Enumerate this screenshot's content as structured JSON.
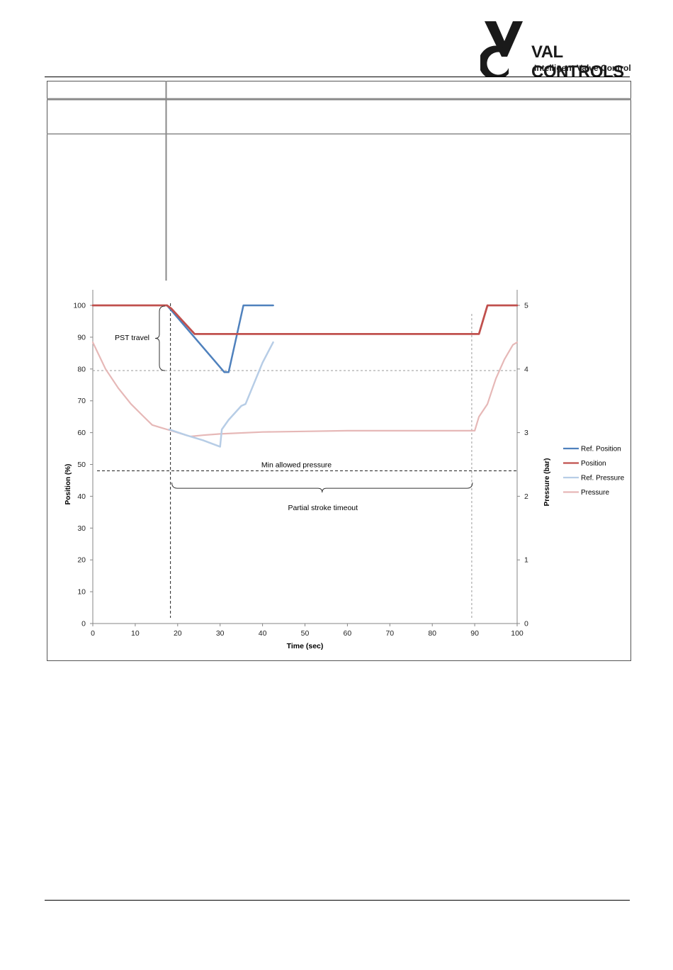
{
  "header": {
    "logo_text": "VAL CONTROLS",
    "logo_tagline": "Intelligent Valve Control"
  },
  "chart_data": {
    "type": "line",
    "title": "",
    "xlabel": "Time (sec)",
    "ylabel": "Position (%)",
    "y2label": "Pressure (bar)",
    "xlim": [
      0,
      100
    ],
    "ylim": [
      0,
      100
    ],
    "y2lim": [
      0,
      5
    ],
    "xticks": [
      "0",
      "10",
      "20",
      "30",
      "40",
      "50",
      "60",
      "70",
      "80",
      "90",
      "100"
    ],
    "yticks": [
      "0",
      "10",
      "20",
      "30",
      "40",
      "50",
      "60",
      "70",
      "80",
      "90",
      "100"
    ],
    "y2ticks": [
      "0",
      "1",
      "2",
      "3",
      "4",
      "5"
    ],
    "legend_position": "right",
    "series": [
      {
        "name": "Ref. Position",
        "axis": "left",
        "color": "#4f81bd",
        "x": [
          17.5,
          31,
          32,
          35.5,
          42.5
        ],
        "y": [
          100,
          79,
          79,
          100,
          100
        ]
      },
      {
        "name": "Position",
        "axis": "left",
        "color": "#c0504d",
        "x": [
          0,
          17.5,
          18.5,
          24,
          91,
          93,
          100
        ],
        "y": [
          100,
          100,
          99,
          91,
          91,
          100,
          100
        ]
      },
      {
        "name": "Ref. Pressure",
        "axis": "right",
        "color": "#b7cde6",
        "x": [
          18,
          22,
          26,
          30,
          30.4,
          32,
          35,
          36,
          40,
          42.5
        ],
        "y": [
          3.05,
          2.96,
          2.88,
          2.78,
          3.05,
          3.2,
          3.42,
          3.45,
          4.1,
          4.42
        ]
      },
      {
        "name": "Pressure",
        "axis": "right",
        "color": "#e6b8b7",
        "x": [
          0,
          3,
          6,
          9,
          12,
          14,
          16,
          18,
          20,
          23,
          26,
          30,
          40,
          50,
          60,
          70,
          80,
          89.5,
          90,
          91,
          93,
          95,
          97,
          99,
          100
        ],
        "y": [
          4.42,
          4.0,
          3.7,
          3.45,
          3.25,
          3.12,
          3.08,
          3.04,
          3.0,
          2.94,
          2.96,
          2.98,
          3.01,
          3.02,
          3.03,
          3.03,
          3.03,
          3.03,
          3.03,
          3.25,
          3.45,
          3.85,
          4.15,
          4.38,
          4.42
        ]
      }
    ],
    "annotations": {
      "pst_travel": "PST travel",
      "min_allowed_pressure": "Min allowed pressure",
      "partial_stroke_timeout": "Partial stroke timeout",
      "min_pressure_level_bar": 2.4,
      "pst_travel_limit_pct": 79.5,
      "timeout_start_sec": 18.3,
      "timeout_end_sec": 89.3
    }
  }
}
